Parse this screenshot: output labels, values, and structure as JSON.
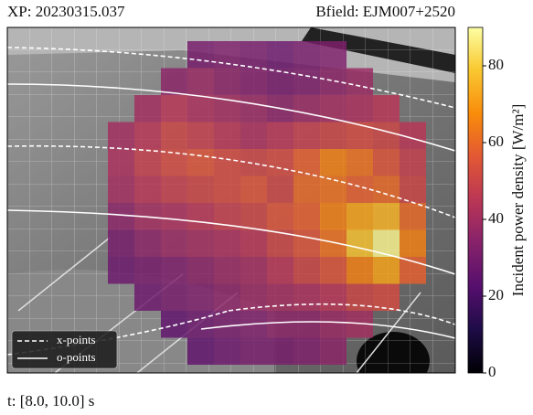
{
  "chart_data": {
    "type": "heatmap",
    "title": "XP: 20230315.037",
    "subtitle": "Bfield: EJM007+2520",
    "caption": "t: [8.0, 10.0] s",
    "colorbar_label": "Incident power density [W/m²]",
    "colormap": "inferno",
    "clim": [
      0,
      90
    ],
    "cticks": [
      0,
      20,
      40,
      60,
      80
    ],
    "legend": [
      "x-points",
      "o-points"
    ],
    "legend_position": "lower left",
    "z": [
      [
        null,
        null,
        null,
        30,
        32,
        30,
        28,
        30,
        32,
        null,
        null,
        null
      ],
      [
        null,
        null,
        35,
        38,
        35,
        33,
        30,
        32,
        35,
        38,
        null,
        null
      ],
      [
        null,
        40,
        45,
        42,
        40,
        38,
        35,
        38,
        40,
        42,
        45,
        null
      ],
      [
        40,
        45,
        50,
        48,
        45,
        42,
        45,
        48,
        50,
        52,
        50,
        45
      ],
      [
        42,
        48,
        52,
        55,
        52,
        50,
        52,
        58,
        65,
        62,
        55,
        48
      ],
      [
        40,
        45,
        48,
        50,
        52,
        55,
        50,
        60,
        62,
        58,
        60,
        50
      ],
      [
        35,
        40,
        42,
        45,
        48,
        50,
        55,
        58,
        65,
        72,
        75,
        60
      ],
      [
        30,
        35,
        38,
        40,
        42,
        45,
        50,
        55,
        62,
        78,
        88,
        65
      ],
      [
        28,
        30,
        32,
        35,
        38,
        40,
        45,
        50,
        55,
        65,
        72,
        58
      ],
      [
        null,
        28,
        30,
        32,
        35,
        38,
        40,
        42,
        45,
        50,
        52,
        null
      ],
      [
        null,
        null,
        25,
        28,
        30,
        32,
        35,
        35,
        38,
        40,
        null,
        null
      ],
      [
        null,
        null,
        null,
        25,
        28,
        30,
        30,
        32,
        35,
        null,
        null,
        null
      ]
    ]
  }
}
